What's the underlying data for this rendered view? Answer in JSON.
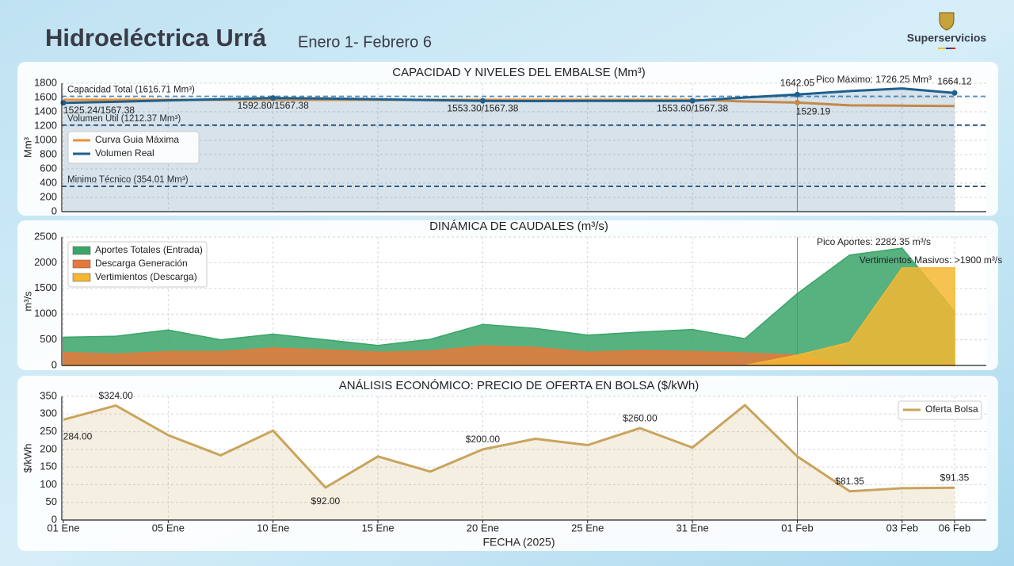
{
  "header": {
    "title": "Hidroeléctrica Urrá",
    "subtitle": "Enero 1- Febrero 6",
    "brand": "Superservicios"
  },
  "chart_data": [
    {
      "type": "line",
      "title": "CAPACIDAD Y NIVELES DEL EMBALSE (Mm³)",
      "ylabel": "Mm³",
      "ylim": [
        0,
        1800
      ],
      "yticks": [
        0,
        200,
        400,
        600,
        800,
        1000,
        1200,
        1400,
        1600,
        1800
      ],
      "grid": true,
      "legend": "center left",
      "series": [
        {
          "name": "Curva Guia Máxima",
          "color": "#e8923a",
          "fill": false,
          "values": [
            1567.38,
            1567.38,
            1567.38,
            1567.38,
            1567.38,
            1567.38,
            1567.38,
            1567.38,
            1567.38,
            1567.38,
            1567.38,
            1567.38,
            1567.38,
            1545,
            1529.19,
            1490,
            1485,
            1480
          ],
          "value_labels": [
            null,
            null,
            null,
            null,
            null,
            null,
            null,
            null,
            null,
            null,
            null,
            null,
            null,
            null,
            "1529.19",
            null,
            null,
            null
          ]
        },
        {
          "name": "Volumen Real",
          "color": "#1f5f8b",
          "fill": true,
          "values": [
            1525.24,
            1540,
            1560,
            1575,
            1592.8,
            1585,
            1575,
            1565,
            1553.3,
            1550,
            1552,
            1553,
            1553.6,
            1600,
            1642.05,
            1690,
            1726.25,
            1664.12
          ],
          "value_labels": [
            "1525.24/1567.38",
            null,
            null,
            null,
            "1592.80/1567.38",
            null,
            null,
            null,
            "1553.30/1567.38",
            null,
            null,
            null,
            "1553.60/1567.38",
            null,
            "1642.05",
            null,
            null,
            "1664.12"
          ]
        }
      ],
      "ref_lines": [
        {
          "value": 1616.71,
          "label": "Capacidad Total (1616.71 Mm³)",
          "color": "#4a90c9"
        },
        {
          "value": 1212.37,
          "label": "Volumen Util (1212.37 Mm³)",
          "color": "#1f4e7a"
        },
        {
          "value": 354.01,
          "label": "Minimo Técnico (354.01 Mm³)",
          "color": "#1f4e7a"
        }
      ],
      "annotations": [
        "Pico Máximo: 1726.25 Mm³"
      ]
    },
    {
      "type": "area",
      "title": "DINÁMICA DE CAUDALES (m³/s)",
      "ylabel": "m³/s",
      "ylim": [
        0,
        2500
      ],
      "yticks": [
        0,
        500,
        1000,
        1500,
        2000,
        2500
      ],
      "grid": true,
      "legend": "upper left",
      "series": [
        {
          "name": "Aportes Totales (Entrada)",
          "color": "#3aa56a",
          "values": [
            550,
            570,
            690,
            500,
            610,
            500,
            390,
            510,
            800,
            720,
            590,
            650,
            700,
            520,
            1400,
            2150,
            2282.35,
            1050
          ]
        },
        {
          "name": "Descarga Generación",
          "color": "#e8783a",
          "values": [
            250,
            220,
            270,
            270,
            340,
            300,
            260,
            280,
            380,
            350,
            260,
            290,
            270,
            240,
            200,
            0,
            0,
            0
          ]
        },
        {
          "name": "Vertimientos (Descarga)",
          "color": "#f5b731",
          "values": [
            0,
            0,
            0,
            0,
            0,
            0,
            0,
            0,
            0,
            0,
            0,
            0,
            0,
            0,
            200,
            450,
            1900,
            1900
          ]
        }
      ],
      "annotations": [
        "Pico Aportes: 2282.35 m³/s",
        "Vertimientos Masivos: >1900 m³/s"
      ]
    },
    {
      "type": "line",
      "title": "ANÁLISIS ECONÓMICO: PRECIO DE OFERTA EN BOLSA ($/kWh)",
      "ylabel": "$/kWh",
      "xlabel": "FECHA (2025)",
      "categories": [
        "01 Ene",
        null,
        "05 Ene",
        null,
        "10 Ene",
        null,
        "15 Ene",
        null,
        "20 Ene",
        null,
        "25 Ene",
        null,
        "31 Ene",
        null,
        "01 Feb",
        null,
        "03 Feb",
        "06 Feb"
      ],
      "ylim": [
        0,
        350
      ],
      "yticks": [
        0,
        50,
        100,
        150,
        200,
        250,
        300,
        350
      ],
      "grid": true,
      "legend": "upper right",
      "series": [
        {
          "name": "Oferta Bolsa",
          "color": "#c9a45c",
          "fill": true,
          "values": [
            284,
            324,
            240,
            183,
            253,
            92,
            180,
            137,
            200,
            230,
            212,
            260,
            205,
            325,
            180,
            81.35,
            90,
            91.35
          ],
          "value_labels": [
            "284.00",
            "$324.00",
            null,
            null,
            null,
            "$92.00",
            null,
            null,
            "$200.00",
            null,
            null,
            "$260.00",
            null,
            null,
            null,
            "$81.35",
            null,
            "$91.35"
          ]
        }
      ]
    }
  ]
}
